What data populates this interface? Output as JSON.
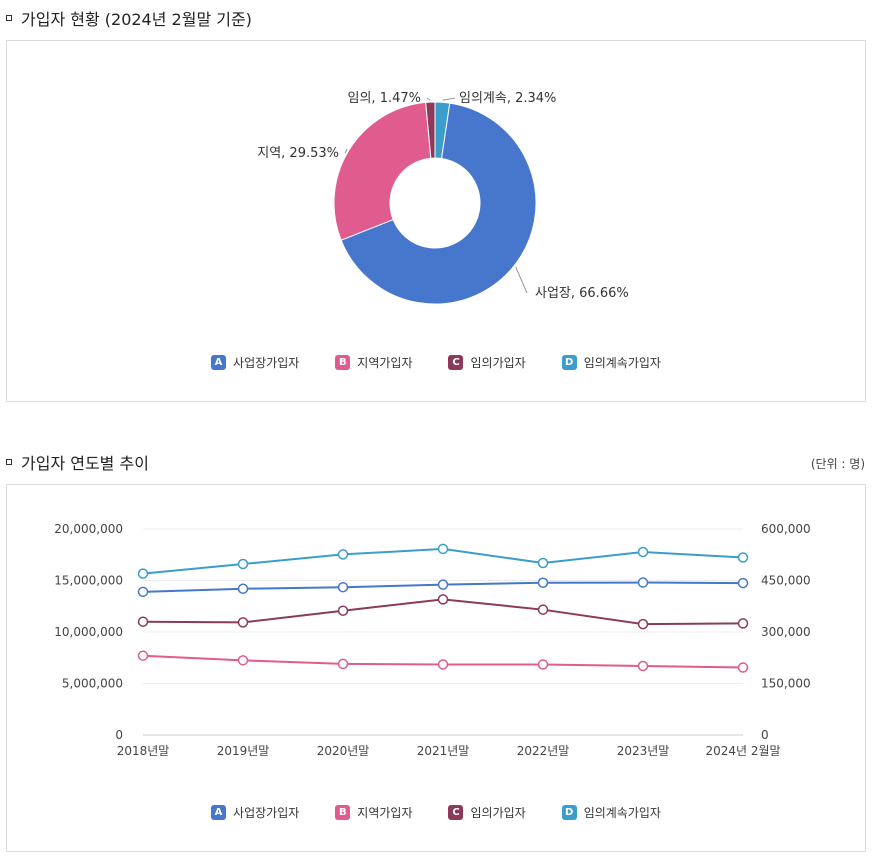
{
  "section1": {
    "title": "가입자 현황 (2024년 2월말 기준)"
  },
  "section2": {
    "title": "가입자 연도별 추이",
    "unit": "(단위 : 명)"
  },
  "legend": [
    {
      "badge": "A",
      "label": "사업장가입자",
      "color": "#4677cc"
    },
    {
      "badge": "B",
      "label": "지역가입자",
      "color": "#e05c8f"
    },
    {
      "badge": "C",
      "label": "임의가입자",
      "color": "#8b3a5b"
    },
    {
      "badge": "D",
      "label": "임의계속가입자",
      "color": "#3b9dcc"
    }
  ],
  "chart_data": [
    {
      "type": "pie",
      "variant": "donut",
      "slices": [
        {
          "name": "사업장",
          "value": 66.66,
          "label": "사업장, 66.66%",
          "color": "#4677cc"
        },
        {
          "name": "지역",
          "value": 29.53,
          "label": "지역, 29.53%",
          "color": "#e05c8f"
        },
        {
          "name": "임의",
          "value": 1.47,
          "label": "임의, 1.47%",
          "color": "#8b3a5b"
        },
        {
          "name": "임의계속",
          "value": 2.34,
          "label": "임의계속, 2.34%",
          "color": "#3b9dcc"
        }
      ],
      "legend_position": "bottom"
    },
    {
      "type": "line",
      "x": [
        "2018년말",
        "2019년말",
        "2020년말",
        "2021년말",
        "2022년말",
        "2023년말",
        "2024년 2월말"
      ],
      "y_left": {
        "ticks": [
          "0",
          "5,000,000",
          "10,000,000",
          "15,000,000",
          "20,000,000"
        ],
        "range": [
          0,
          20000000
        ]
      },
      "y_right": {
        "ticks": [
          "0",
          "150,000",
          "300,000",
          "450,000",
          "600,000"
        ],
        "range": [
          0,
          600000
        ]
      },
      "series": [
        {
          "name": "사업장가입자",
          "axis": "left",
          "color": "#4677cc",
          "values": [
            13900000,
            14200000,
            14350000,
            14600000,
            14780000,
            14800000,
            14750000
          ]
        },
        {
          "name": "지역가입자",
          "axis": "left",
          "color": "#e05c8f",
          "values": [
            7700000,
            7250000,
            6900000,
            6850000,
            6850000,
            6700000,
            6550000
          ]
        },
        {
          "name": "임의가입자",
          "axis": "right",
          "color": "#8b3a5b",
          "values": [
            330000,
            328000,
            362000,
            395000,
            365000,
            323000,
            325000
          ]
        },
        {
          "name": "임의계속가입자",
          "axis": "right",
          "color": "#3b9dcc",
          "values": [
            470000,
            498000,
            526000,
            542000,
            501000,
            533000,
            517000
          ]
        }
      ],
      "grid": true,
      "legend_position": "bottom"
    }
  ]
}
